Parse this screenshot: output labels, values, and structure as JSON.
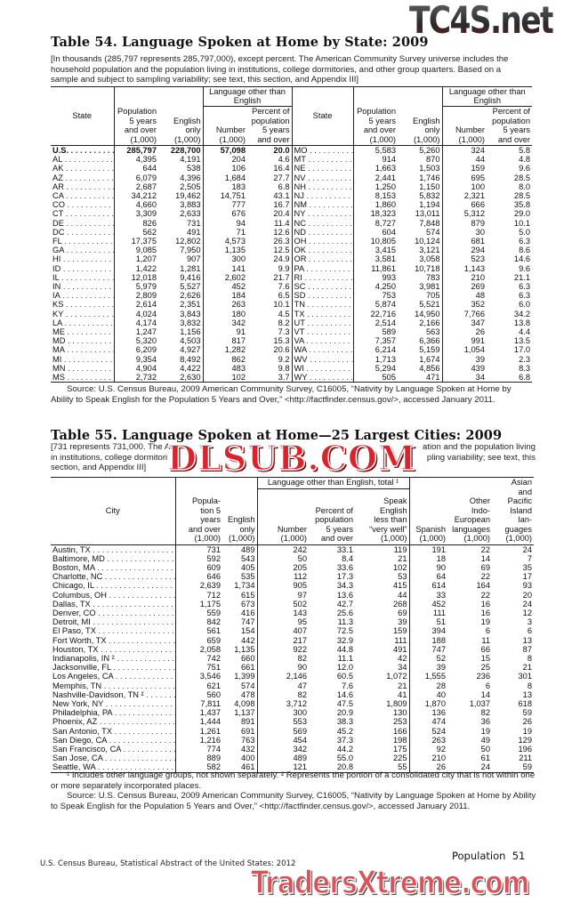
{
  "watermarks": {
    "top": "TC4S.net",
    "middle": "DLSUB.COM",
    "bottom": "TradersXtreme.com"
  },
  "table54": {
    "title": "Table 54. Language Spoken at Home by State: 2009",
    "headnote": [
      "[In thousands (285,797 represents 285,797,000), except percent. The American Community Survey universe includes the",
      "household population and the population living in institutions, college dormitories, and other group quarters. Based on a",
      "sample and subject to sampling variability; see text, this section, and Appendix III]"
    ],
    "headers": {
      "state": "State",
      "population": "Population\n5 years\nand over\n(1,000)",
      "english_only": "English\nonly\n(1,000)",
      "group": "Language other than\nEnglish",
      "number": "Number\n(1,000)",
      "percent": "Percent of\npopulation\n5 years\nand over"
    },
    "left_rows": [
      [
        "U.S.",
        "285,797",
        "228,700",
        "57,098",
        "20.0"
      ],
      [
        "AL",
        "4,395",
        "4,191",
        "204",
        "4.6"
      ],
      [
        "AK",
        "644",
        "538",
        "106",
        "16.4"
      ],
      [
        "AZ",
        "6,079",
        "4,396",
        "1,684",
        "27.7"
      ],
      [
        "AR",
        "2,687",
        "2,505",
        "183",
        "6.8"
      ],
      [
        "CA",
        "34,212",
        "19,462",
        "14,751",
        "43.1"
      ],
      [
        "CO",
        "4,660",
        "3,883",
        "777",
        "16.7"
      ],
      [
        "CT",
        "3,309",
        "2,633",
        "676",
        "20.4"
      ],
      [
        "DE",
        "826",
        "731",
        "94",
        "11.4"
      ],
      [
        "DC",
        "562",
        "491",
        "71",
        "12.6"
      ],
      [
        "FL",
        "17,375",
        "12,802",
        "4,573",
        "26.3"
      ],
      [
        "GA",
        "9,085",
        "7,950",
        "1,135",
        "12.5"
      ],
      [
        "HI",
        "1,207",
        "907",
        "300",
        "24.9"
      ],
      [
        "ID",
        "1,422",
        "1,281",
        "141",
        "9.9"
      ],
      [
        "IL",
        "12,018",
        "9,416",
        "2,602",
        "21.7"
      ],
      [
        "IN",
        "5,979",
        "5,527",
        "452",
        "7.6"
      ],
      [
        "IA",
        "2,809",
        "2,626",
        "184",
        "6.5"
      ],
      [
        "KS",
        "2,614",
        "2,351",
        "263",
        "10.1"
      ],
      [
        "KY",
        "4,024",
        "3,843",
        "180",
        "4.5"
      ],
      [
        "LA",
        "4,174",
        "3,832",
        "342",
        "8.2"
      ],
      [
        "ME",
        "1,247",
        "1,156",
        "91",
        "7.3"
      ],
      [
        "MD",
        "5,320",
        "4,503",
        "817",
        "15.3"
      ],
      [
        "MA",
        "6,209",
        "4,927",
        "1,282",
        "20.6"
      ],
      [
        "MI",
        "9,354",
        "8,492",
        "862",
        "9.2"
      ],
      [
        "MN",
        "4,904",
        "4,422",
        "483",
        "9.8"
      ],
      [
        "MS",
        "2,732",
        "2,630",
        "102",
        "3.7"
      ]
    ],
    "right_rows": [
      [
        "MO",
        "5,583",
        "5,260",
        "324",
        "5.8"
      ],
      [
        "MT",
        "914",
        "870",
        "44",
        "4.8"
      ],
      [
        "NE",
        "1,663",
        "1,503",
        "159",
        "9.6"
      ],
      [
        "NV",
        "2,441",
        "1,746",
        "695",
        "28.5"
      ],
      [
        "NH",
        "1,250",
        "1,150",
        "100",
        "8.0"
      ],
      [
        "NJ",
        "8,153",
        "5,832",
        "2,321",
        "28.5"
      ],
      [
        "NM",
        "1,860",
        "1,194",
        "666",
        "35.8"
      ],
      [
        "NY",
        "18,323",
        "13,011",
        "5,312",
        "29.0"
      ],
      [
        "NC",
        "8,727",
        "7,848",
        "879",
        "10.1"
      ],
      [
        "ND",
        "604",
        "574",
        "30",
        "5.0"
      ],
      [
        "OH",
        "10,805",
        "10,124",
        "681",
        "6.3"
      ],
      [
        "OK",
        "3,415",
        "3,121",
        "294",
        "8.6"
      ],
      [
        "OR",
        "3,581",
        "3,058",
        "523",
        "14.6"
      ],
      [
        "PA",
        "11,861",
        "10,718",
        "1,143",
        "9.6"
      ],
      [
        "RI",
        "993",
        "783",
        "210",
        "21.1"
      ],
      [
        "SC",
        "4,250",
        "3,981",
        "269",
        "6.3"
      ],
      [
        "SD",
        "753",
        "705",
        "48",
        "6.3"
      ],
      [
        "TN",
        "5,874",
        "5,521",
        "352",
        "6.0"
      ],
      [
        "TX",
        "22,716",
        "14,950",
        "7,766",
        "34.2"
      ],
      [
        "UT",
        "2,514",
        "2,166",
        "347",
        "13.8"
      ],
      [
        "VT",
        "589",
        "563",
        "26",
        "4.4"
      ],
      [
        "VA",
        "7,357",
        "6,366",
        "991",
        "13.5"
      ],
      [
        "WA",
        "6,214",
        "5,159",
        "1,054",
        "17.0"
      ],
      [
        "WV",
        "1,713",
        "1,674",
        "39",
        "2.3"
      ],
      [
        "WI",
        "5,294",
        "4,856",
        "439",
        "8.3"
      ],
      [
        "WY",
        "505",
        "471",
        "34",
        "6.8"
      ]
    ],
    "source": [
      "Source: U.S. Census Bureau, 2009 American Community Survey, C16005, “Nativity by Language Spoken at Home by",
      "Ability to Speak English for the Population 5 Years and Over,” <http://factfinder.census.gov/>, accessed January 2011."
    ]
  },
  "table55": {
    "title": "Table 55. Language Spoken at Home—25 Largest Cities: 2009",
    "headnote": [
      [
        "[731 represents 731,000. The A",
        "ation and the population living"
      ],
      [
        "in institutions, college dormitori",
        "pling variability; see text, this"
      ],
      [
        "section, and Appendix III]",
        ""
      ]
    ],
    "headers": {
      "city": "City",
      "population": "Popula-\ntion 5\nyears\nand over\n(1,000)",
      "english_only": "English\nonly\n(1,000)",
      "group": "Language other than English, total ¹",
      "number": "Number\n(1,000)",
      "percent": "Percent of\npopulation\n5 years\nand over",
      "speak": "Speak\nEnglish\nless than\n“very well”\n(1,000)",
      "spanish": "Spanish\n(1,000)",
      "other_indo": "Other\nIndo-\nEuropean\nlanguages\n(1,000)",
      "asian": "Asian\nand\nPacific\nIsland\nlan-\nguages\n(1,000)"
    },
    "rows": [
      [
        "Austin, TX",
        "731",
        "489",
        "242",
        "33.1",
        "119",
        "191",
        "22",
        "24"
      ],
      [
        "Baltimore, MD",
        "592",
        "543",
        "50",
        "8.4",
        "21",
        "18",
        "14",
        "7"
      ],
      [
        "Boston, MA",
        "609",
        "405",
        "205",
        "33.6",
        "102",
        "90",
        "69",
        "35"
      ],
      [
        "Charlotte, NC",
        "646",
        "535",
        "112",
        "17.3",
        "53",
        "64",
        "22",
        "17"
      ],
      [
        "Chicago, IL",
        "2,639",
        "1,734",
        "905",
        "34.3",
        "415",
        "614",
        "164",
        "93"
      ],
      [
        "Columbus, OH",
        "712",
        "615",
        "97",
        "13.6",
        "44",
        "33",
        "22",
        "20"
      ],
      [
        "Dallas, TX",
        "1,175",
        "673",
        "502",
        "42.7",
        "268",
        "452",
        "16",
        "24"
      ],
      [
        "Denver, CO",
        "559",
        "416",
        "143",
        "25.6",
        "69",
        "111",
        "16",
        "12"
      ],
      [
        "Detroit, MI",
        "842",
        "747",
        "95",
        "11.3",
        "39",
        "51",
        "19",
        "3"
      ],
      [
        "El Paso, TX",
        "561",
        "154",
        "407",
        "72.5",
        "159",
        "394",
        "6",
        "6"
      ],
      [
        "Fort Worth, TX",
        "659",
        "442",
        "217",
        "32.9",
        "111",
        "188",
        "11",
        "13"
      ],
      [
        "Houston, TX",
        "2,058",
        "1,135",
        "922",
        "44.8",
        "491",
        "747",
        "66",
        "87"
      ],
      [
        "Indianapolis, IN ²",
        "742",
        "660",
        "82",
        "11.1",
        "42",
        "52",
        "15",
        "8"
      ],
      [
        "Jacksonville, FL",
        "751",
        "661",
        "90",
        "12.0",
        "34",
        "39",
        "25",
        "21"
      ],
      [
        "Los Angeles, CA",
        "3,546",
        "1,399",
        "2,146",
        "60.5",
        "1,072",
        "1,555",
        "236",
        "301"
      ],
      [
        "Memphis, TN",
        "621",
        "574",
        "47",
        "7.6",
        "21",
        "28",
        "6",
        "8"
      ],
      [
        "Nashville-Davidson, TN ²",
        "560",
        "478",
        "82",
        "14.6",
        "41",
        "40",
        "14",
        "13"
      ],
      [
        "New York, NY",
        "7,811",
        "4,098",
        "3,712",
        "47.5",
        "1,809",
        "1,870",
        "1,037",
        "618"
      ],
      [
        "Philadelphia, PA",
        "1,437",
        "1,137",
        "300",
        "20.9",
        "130",
        "136",
        "82",
        "59"
      ],
      [
        "Phoenix, AZ",
        "1,444",
        "891",
        "553",
        "38.3",
        "253",
        "474",
        "36",
        "26"
      ],
      [
        "San Antonio, TX",
        "1,261",
        "691",
        "569",
        "45.2",
        "166",
        "524",
        "19",
        "19"
      ],
      [
        "San Diego, CA",
        "1,216",
        "763",
        "454",
        "37.3",
        "198",
        "263",
        "49",
        "129"
      ],
      [
        "San Francisco, CA",
        "774",
        "432",
        "342",
        "44.2",
        "175",
        "92",
        "50",
        "196"
      ],
      [
        "San Jose, CA",
        "889",
        "400",
        "489",
        "55.0",
        "225",
        "210",
        "61",
        "211"
      ],
      [
        "Seattle, WA",
        "582",
        "461",
        "121",
        "20.8",
        "55",
        "26",
        "24",
        "59"
      ]
    ],
    "footnotes": [
      "¹ Includes other language groups, not shown separately. ² Represents the portion of a consolidated city that is not within one",
      "or more separately incorporated places."
    ],
    "source": [
      "Source: U.S. Census Bureau, 2009 American Community Survey, C16005, “Nativity by Language Spoken at Home by Ability",
      "to Speak English for the Population 5 Years and Over,” <http://factfinder.census.gov/>, accessed January 2011."
    ]
  },
  "footer": {
    "left": "U.S. Census Bureau, Statistical Abstract of the United States: 2012",
    "right": "Population  51"
  }
}
